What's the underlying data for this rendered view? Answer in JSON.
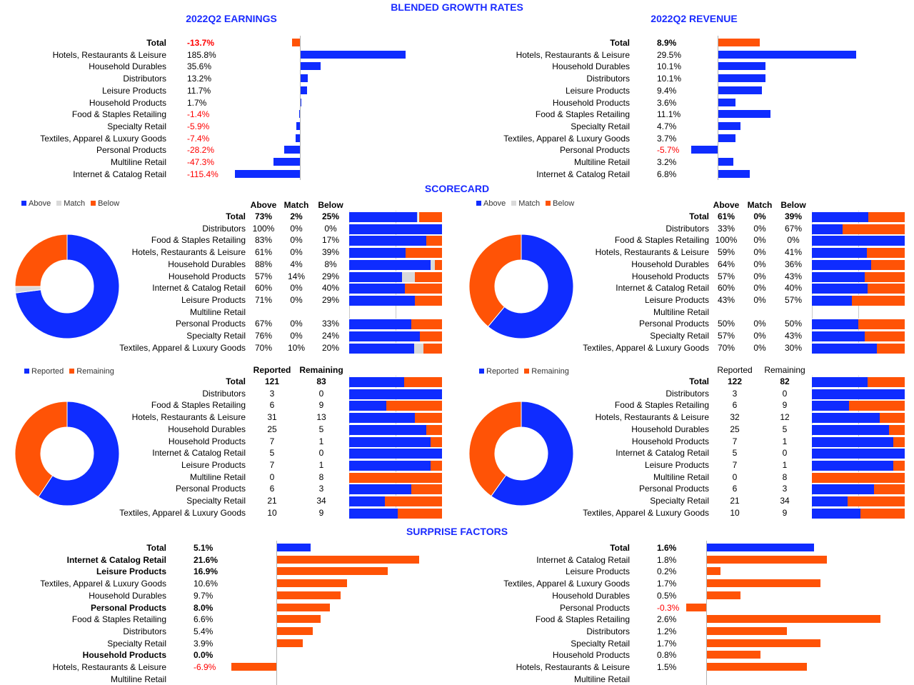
{
  "titles": {
    "main": "BLENDED GROWTH RATES",
    "earnings": "2022Q2 EARNINGS",
    "revenue": "2022Q2 REVENUE",
    "scorecard": "SCORECARD",
    "surprise": "SURPRISE FACTORS"
  },
  "colors": {
    "blue": "#0f2cff",
    "orange": "#ff5306",
    "gray": "#d9d9d9",
    "negative_text": "#ff0000"
  },
  "chart_data": [
    {
      "id": "earnings_growth",
      "type": "bar",
      "orientation": "horizontal",
      "title": "2022Q2 EARNINGS",
      "categories": [
        "Total",
        "Hotels, Restaurants & Leisure",
        "Household Durables",
        "Distributors",
        "Leisure Products",
        "Household Products",
        "Food & Staples Retailing",
        "Specialty Retail",
        "Textiles, Apparel & Luxury Goods",
        "Personal Products",
        "Multiline Retail",
        "Internet & Catalog Retail"
      ],
      "value_labels": [
        "-13.7%",
        "185.8%",
        "35.6%",
        "13.2%",
        "11.7%",
        "1.7%",
        "-1.4%",
        "-5.9%",
        "-7.4%",
        "-28.2%",
        "-47.3%",
        "-115.4%"
      ],
      "values": [
        -13.7,
        185.8,
        35.6,
        13.2,
        11.7,
        1.7,
        -1.4,
        -5.9,
        -7.4,
        -28.2,
        -47.3,
        -115.4
      ],
      "bar_colors": [
        "orange",
        "blue",
        "blue",
        "blue",
        "blue",
        "blue",
        "blue",
        "blue",
        "blue",
        "blue",
        "blue",
        "blue"
      ],
      "bold_rows": [
        0
      ]
    },
    {
      "id": "revenue_growth",
      "type": "bar",
      "orientation": "horizontal",
      "title": "2022Q2 REVENUE",
      "categories": [
        "Total",
        "Hotels, Restaurants & Leisure",
        "Household Durables",
        "Distributors",
        "Leisure Products",
        "Household Products",
        "Food & Staples Retailing",
        "Specialty Retail",
        "Textiles, Apparel & Luxury Goods",
        "Personal Products",
        "Multiline Retail",
        "Internet & Catalog Retail"
      ],
      "value_labels": [
        "8.9%",
        "29.5%",
        "10.1%",
        "10.1%",
        "9.4%",
        "3.6%",
        "11.1%",
        "4.7%",
        "3.7%",
        "-5.7%",
        "3.2%",
        "6.8%"
      ],
      "values": [
        8.9,
        29.5,
        10.1,
        10.1,
        9.4,
        3.6,
        11.1,
        4.7,
        3.7,
        -5.7,
        3.2,
        6.8
      ],
      "bar_colors": [
        "orange",
        "blue",
        "blue",
        "blue",
        "blue",
        "blue",
        "blue",
        "blue",
        "blue",
        "blue",
        "blue",
        "blue"
      ],
      "bold_rows": [
        0
      ]
    },
    {
      "id": "earnings_scorecard",
      "type": "table",
      "legend": [
        "Above",
        "Match",
        "Below"
      ],
      "headers": [
        "Above",
        "Match",
        "Below"
      ],
      "categories": [
        "Total",
        "Distributors",
        "Food & Staples Retailing",
        "Hotels, Restaurants & Leisure",
        "Household Durables",
        "Household Products",
        "Internet & Catalog Retail",
        "Leisure Products",
        "Multiline Retail",
        "Personal Products",
        "Specialty Retail",
        "Textiles, Apparel & Luxury Goods"
      ],
      "rows": [
        [
          "73%",
          "2%",
          "25%"
        ],
        [
          "100%",
          "0%",
          "0%"
        ],
        [
          "83%",
          "0%",
          "17%"
        ],
        [
          "61%",
          "0%",
          "39%"
        ],
        [
          "88%",
          "4%",
          "8%"
        ],
        [
          "57%",
          "14%",
          "29%"
        ],
        [
          "60%",
          "0%",
          "40%"
        ],
        [
          "71%",
          "0%",
          "29%"
        ],
        [
          "",
          "",
          ""
        ],
        [
          "67%",
          "0%",
          "33%"
        ],
        [
          "76%",
          "0%",
          "24%"
        ],
        [
          "70%",
          "10%",
          "20%"
        ]
      ],
      "series": [
        {
          "name": "Above",
          "values": [
            73,
            100,
            83,
            61,
            88,
            57,
            60,
            71,
            0,
            67,
            76,
            70
          ]
        },
        {
          "name": "Match",
          "values": [
            2,
            0,
            0,
            0,
            4,
            14,
            0,
            0,
            0,
            0,
            0,
            10
          ]
        },
        {
          "name": "Below",
          "values": [
            25,
            0,
            17,
            39,
            8,
            29,
            40,
            29,
            0,
            33,
            24,
            20
          ]
        }
      ],
      "donut": {
        "Above": 73,
        "Match": 2,
        "Below": 25
      },
      "bold_rows": [
        0
      ]
    },
    {
      "id": "revenue_scorecard",
      "type": "table",
      "legend": [
        "Above",
        "Match",
        "Below"
      ],
      "headers": [
        "Above",
        "Match",
        "Below"
      ],
      "categories": [
        "Total",
        "Distributors",
        "Food & Staples Retailing",
        "Hotels, Restaurants & Leisure",
        "Household Durables",
        "Household Products",
        "Internet & Catalog Retail",
        "Leisure Products",
        "Multiline Retail",
        "Personal Products",
        "Specialty Retail",
        "Textiles, Apparel & Luxury Goods"
      ],
      "rows": [
        [
          "61%",
          "0%",
          "39%"
        ],
        [
          "33%",
          "0%",
          "67%"
        ],
        [
          "100%",
          "0%",
          "0%"
        ],
        [
          "59%",
          "0%",
          "41%"
        ],
        [
          "64%",
          "0%",
          "36%"
        ],
        [
          "57%",
          "0%",
          "43%"
        ],
        [
          "60%",
          "0%",
          "40%"
        ],
        [
          "43%",
          "0%",
          "57%"
        ],
        [
          "",
          "",
          ""
        ],
        [
          "50%",
          "0%",
          "50%"
        ],
        [
          "57%",
          "0%",
          "43%"
        ],
        [
          "70%",
          "0%",
          "30%"
        ]
      ],
      "series": [
        {
          "name": "Above",
          "values": [
            61,
            33,
            100,
            59,
            64,
            57,
            60,
            43,
            0,
            50,
            57,
            70
          ]
        },
        {
          "name": "Match",
          "values": [
            0,
            0,
            0,
            0,
            0,
            0,
            0,
            0,
            0,
            0,
            0,
            0
          ]
        },
        {
          "name": "Below",
          "values": [
            39,
            67,
            0,
            41,
            36,
            43,
            40,
            57,
            0,
            50,
            43,
            30
          ]
        }
      ],
      "donut": {
        "Above": 61,
        "Match": 0,
        "Below": 39
      },
      "bold_rows": [
        0
      ]
    },
    {
      "id": "earnings_reported",
      "type": "table",
      "legend": [
        "Reported",
        "Remaining"
      ],
      "headers": [
        "Reported",
        "Remaining"
      ],
      "categories": [
        "Total",
        "Distributors",
        "Food & Staples Retailing",
        "Hotels, Restaurants & Leisure",
        "Household Durables",
        "Household Products",
        "Internet & Catalog Retail",
        "Leisure Products",
        "Multiline Retail",
        "Personal Products",
        "Specialty Retail",
        "Textiles, Apparel & Luxury Goods"
      ],
      "rows": [
        [
          "121",
          "83"
        ],
        [
          "3",
          "0"
        ],
        [
          "6",
          "9"
        ],
        [
          "31",
          "13"
        ],
        [
          "25",
          "5"
        ],
        [
          "7",
          "1"
        ],
        [
          "5",
          "0"
        ],
        [
          "7",
          "1"
        ],
        [
          "0",
          "8"
        ],
        [
          "6",
          "3"
        ],
        [
          "21",
          "34"
        ],
        [
          "10",
          "9"
        ]
      ],
      "series": [
        {
          "name": "Reported",
          "values": [
            121,
            3,
            6,
            31,
            25,
            7,
            5,
            7,
            0,
            6,
            21,
            10
          ]
        },
        {
          "name": "Remaining",
          "values": [
            83,
            0,
            9,
            13,
            5,
            1,
            0,
            1,
            8,
            3,
            34,
            9
          ]
        }
      ],
      "donut": {
        "Reported": 121,
        "Remaining": 83
      },
      "bold_rows": [
        0
      ]
    },
    {
      "id": "revenue_reported",
      "type": "table",
      "legend": [
        "Reported",
        "Remaining"
      ],
      "headers": [
        "Reported",
        "Remaining"
      ],
      "categories": [
        "Total",
        "Distributors",
        "Food & Staples Retailing",
        "Hotels, Restaurants & Leisure",
        "Household Durables",
        "Household Products",
        "Internet & Catalog Retail",
        "Leisure Products",
        "Multiline Retail",
        "Personal Products",
        "Specialty Retail",
        "Textiles, Apparel & Luxury Goods"
      ],
      "rows": [
        [
          "122",
          "82"
        ],
        [
          "3",
          "0"
        ],
        [
          "6",
          "9"
        ],
        [
          "32",
          "12"
        ],
        [
          "25",
          "5"
        ],
        [
          "7",
          "1"
        ],
        [
          "5",
          "0"
        ],
        [
          "7",
          "1"
        ],
        [
          "0",
          "8"
        ],
        [
          "6",
          "3"
        ],
        [
          "21",
          "34"
        ],
        [
          "10",
          "9"
        ]
      ],
      "series": [
        {
          "name": "Reported",
          "values": [
            122,
            3,
            6,
            32,
            25,
            7,
            5,
            7,
            0,
            6,
            21,
            10
          ]
        },
        {
          "name": "Remaining",
          "values": [
            82,
            0,
            9,
            12,
            5,
            1,
            0,
            1,
            8,
            3,
            34,
            9
          ]
        }
      ],
      "donut": {
        "Reported": 122,
        "Remaining": 82
      },
      "bold_rows": [
        0
      ]
    },
    {
      "id": "earnings_surprise",
      "type": "bar",
      "orientation": "horizontal",
      "categories": [
        "Total",
        "Internet & Catalog Retail",
        "Leisure Products",
        "Textiles, Apparel & Luxury Goods",
        "Household Durables",
        "Personal Products",
        "Food & Staples Retailing",
        "Distributors",
        "Specialty Retail",
        "Household Products",
        "Hotels, Restaurants & Leisure",
        "Multiline Retail"
      ],
      "value_labels": [
        "5.1%",
        "21.6%",
        "16.9%",
        "10.6%",
        "9.7%",
        "8.0%",
        "6.6%",
        "5.4%",
        "3.9%",
        "0.0%",
        "-6.9%",
        ""
      ],
      "values": [
        5.1,
        21.6,
        16.9,
        10.6,
        9.7,
        8.0,
        6.6,
        5.4,
        3.9,
        0.0,
        -6.9,
        null
      ],
      "bar_colors": [
        "blue",
        "orange",
        "orange",
        "orange",
        "orange",
        "orange",
        "orange",
        "orange",
        "orange",
        "orange",
        "orange",
        "orange"
      ],
      "bold_rows": [
        0,
        1,
        2,
        5,
        9
      ]
    },
    {
      "id": "revenue_surprise",
      "type": "bar",
      "orientation": "horizontal",
      "categories": [
        "Total",
        "Internet & Catalog Retail",
        "Leisure Products",
        "Textiles, Apparel & Luxury Goods",
        "Household Durables",
        "Personal Products",
        "Food & Staples Retailing",
        "Distributors",
        "Specialty Retail",
        "Household Products",
        "Hotels, Restaurants & Leisure",
        "Multiline Retail"
      ],
      "value_labels": [
        "1.6%",
        "1.8%",
        "0.2%",
        "1.7%",
        "0.5%",
        "-0.3%",
        "2.6%",
        "1.2%",
        "1.7%",
        "0.8%",
        "1.5%",
        ""
      ],
      "values": [
        1.6,
        1.8,
        0.2,
        1.7,
        0.5,
        -0.3,
        2.6,
        1.2,
        1.7,
        0.8,
        1.5,
        null
      ],
      "bar_colors": [
        "blue",
        "orange",
        "orange",
        "orange",
        "orange",
        "orange",
        "orange",
        "orange",
        "orange",
        "orange",
        "orange",
        "orange"
      ],
      "bold_rows": [
        0
      ]
    }
  ]
}
